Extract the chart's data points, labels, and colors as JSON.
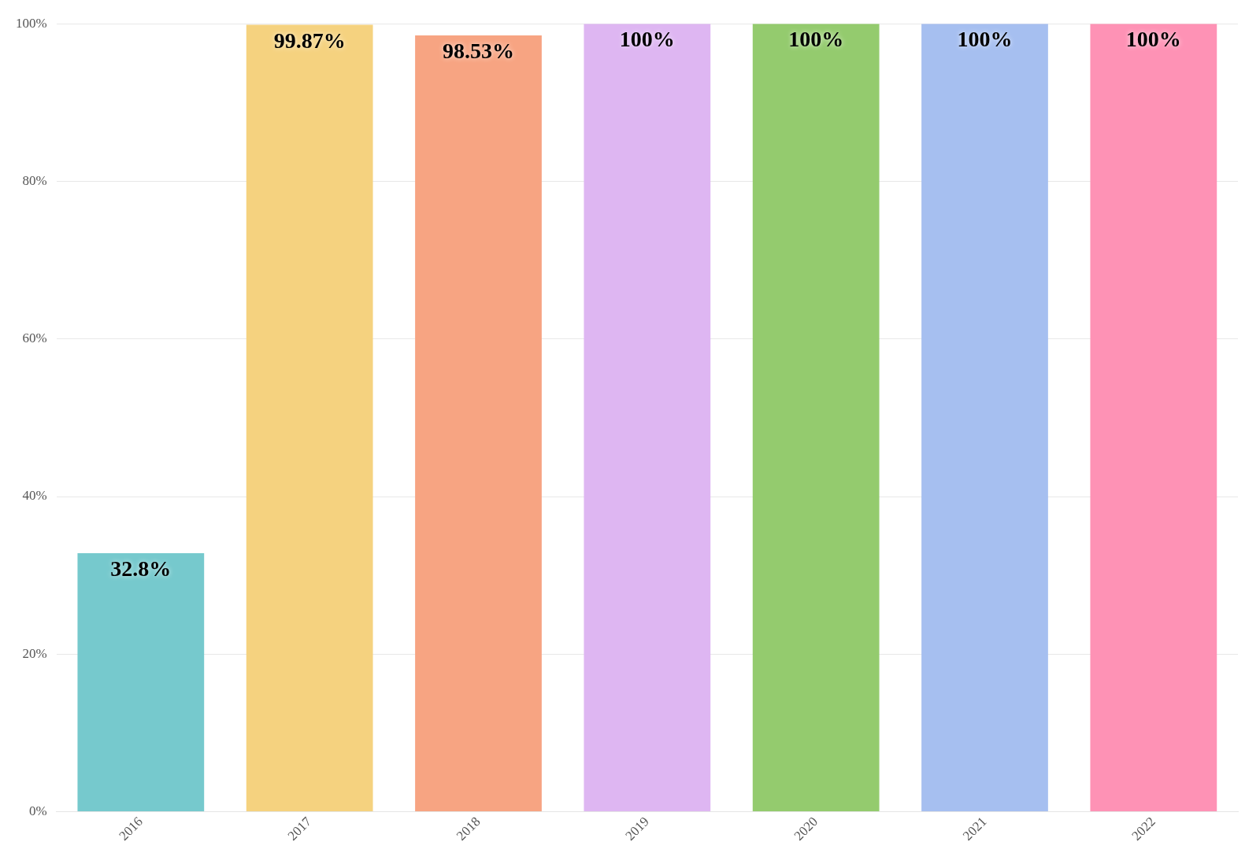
{
  "chart_data": {
    "type": "bar",
    "categories": [
      "2016",
      "2017",
      "2018",
      "2019",
      "2020",
      "2021",
      "2022"
    ],
    "values": [
      32.8,
      99.87,
      98.53,
      100,
      100,
      100,
      100
    ],
    "colors": [
      "#76c9cd",
      "#f5d27f",
      "#f7a482",
      "#deb6f2",
      "#94cb6e",
      "#a6bff0",
      "#fe92b5"
    ],
    "value_labels": [
      "32.8%",
      "99.87%",
      "98.53%",
      "100%",
      "100%",
      "100%",
      "100%"
    ],
    "ylim": [
      0,
      100
    ],
    "yticks": [
      {
        "value": 0,
        "label": "0%"
      },
      {
        "value": 20,
        "label": "20%"
      },
      {
        "value": 40,
        "label": "40%"
      },
      {
        "value": 60,
        "label": "60%"
      },
      {
        "value": 80,
        "label": "80%"
      },
      {
        "value": 100,
        "label": "100%"
      }
    ],
    "grid": "y",
    "legend": false
  }
}
